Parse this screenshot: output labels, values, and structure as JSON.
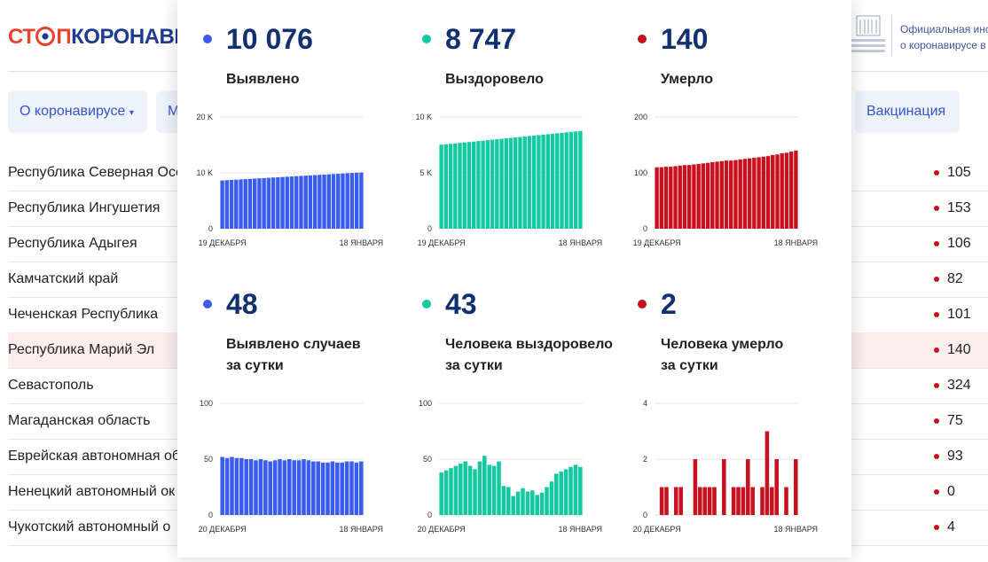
{
  "header": {
    "logo_left": "СТ",
    "logo_mid": "П",
    "logo_right": "КОРОНАВИ",
    "gov_lines": [
      "Официальная инс",
      "о коронавирусе в"
    ]
  },
  "nav": [
    "О коронавирусе",
    "М",
    "Вакцинация"
  ],
  "table": {
    "highlight_row": 5,
    "rows": [
      [
        "Республика Северная Осе",
        105
      ],
      [
        "Республика Ингушетия",
        153
      ],
      [
        "Республика Адыгея",
        106
      ],
      [
        "Камчатский край",
        82
      ],
      [
        "Чеченская Республика",
        101
      ],
      [
        "Республика Марий Эл",
        140
      ],
      [
        "Севастополь",
        324
      ],
      [
        "Магаданская область",
        75
      ],
      [
        "Еврейская автономная об",
        93
      ],
      [
        "Ненецкий автономный ок",
        0
      ],
      [
        "Чукотский автономный о",
        4
      ]
    ]
  },
  "chart_data": [
    {
      "type": "bar",
      "headline": "10 076",
      "title": [
        "Выявлено"
      ],
      "color": "#3a5cf0",
      "grid": true,
      "categories": [
        "19 ДЕКАБРЯ",
        null,
        null,
        null,
        null,
        null,
        null,
        null,
        null,
        null,
        null,
        null,
        null,
        null,
        null,
        null,
        null,
        null,
        null,
        null,
        null,
        null,
        null,
        null,
        null,
        null,
        null,
        null,
        null,
        null,
        "18 ЯНВАРЯ"
      ],
      "values": [
        8636,
        8684,
        8732,
        8780,
        8828,
        8876,
        8924,
        8972,
        9020,
        9068,
        9116,
        9164,
        9212,
        9260,
        9308,
        9356,
        9404,
        9452,
        9500,
        9548,
        9596,
        9644,
        9692,
        9740,
        9788,
        9836,
        9884,
        9932,
        9980,
        10028,
        10076
      ],
      "ylim": [
        0,
        20000
      ],
      "yticks": [
        0,
        {
          "value": 10000,
          "label": "10 K"
        },
        {
          "value": 20000,
          "label": "20 K"
        }
      ]
    },
    {
      "type": "bar",
      "headline": "8 747",
      "title": [
        "Выздоровело"
      ],
      "color": "#14c9a0",
      "grid": true,
      "categories": [
        "19 ДЕКАБРЯ",
        null,
        null,
        null,
        null,
        null,
        null,
        null,
        null,
        null,
        null,
        null,
        null,
        null,
        null,
        null,
        null,
        null,
        null,
        null,
        null,
        null,
        null,
        null,
        null,
        null,
        null,
        null,
        null,
        null,
        "18 ЯНВАРЯ"
      ],
      "values": [
        7517,
        7558,
        7599,
        7640,
        7681,
        7722,
        7763,
        7804,
        7845,
        7886,
        7927,
        7968,
        8009,
        8050,
        8091,
        8132,
        8173,
        8214,
        8255,
        8296,
        8337,
        8378,
        8419,
        8460,
        8501,
        8542,
        8583,
        8624,
        8665,
        8706,
        8747
      ],
      "ylim": [
        0,
        10000
      ],
      "yticks": [
        0,
        {
          "value": 5000,
          "label": "5 K"
        },
        {
          "value": 10000,
          "label": "10 K"
        }
      ]
    },
    {
      "type": "bar",
      "headline": "140",
      "title": [
        "Умерло"
      ],
      "color": "#c8101e",
      "grid": true,
      "categories": [
        "19 ДЕКАБРЯ",
        null,
        null,
        null,
        null,
        null,
        null,
        null,
        null,
        null,
        null,
        null,
        null,
        null,
        null,
        null,
        null,
        null,
        null,
        null,
        null,
        null,
        null,
        null,
        null,
        null,
        null,
        null,
        null,
        null,
        "18 ЯНВАРЯ"
      ],
      "values": [
        110,
        110,
        111,
        111,
        112,
        113,
        114,
        114,
        115,
        116,
        117,
        118,
        119,
        120,
        121,
        122,
        122,
        123,
        124,
        125,
        126,
        127,
        128,
        129,
        130,
        132,
        133,
        135,
        136,
        138,
        140
      ],
      "ylim": [
        0,
        200
      ],
      "yticks": [
        0,
        100,
        200
      ]
    },
    {
      "type": "bar",
      "headline": "48",
      "title": [
        "Выявлено случаев",
        "за сутки"
      ],
      "color": "#3a5cf0",
      "grid": true,
      "categories": [
        "20 ДЕКАБРЯ",
        null,
        null,
        null,
        null,
        null,
        null,
        null,
        null,
        null,
        null,
        null,
        null,
        null,
        null,
        null,
        null,
        null,
        null,
        null,
        null,
        null,
        null,
        null,
        null,
        null,
        null,
        null,
        null,
        "18 ЯНВАРЯ"
      ],
      "values": [
        52,
        51,
        52,
        51,
        51,
        50,
        50,
        49,
        50,
        49,
        48,
        49,
        50,
        49,
        50,
        49,
        49,
        50,
        49,
        48,
        48,
        47,
        47,
        48,
        47,
        47,
        48,
        48,
        47,
        48
      ],
      "ylim": [
        0,
        100
      ],
      "yticks": [
        0,
        50,
        100
      ]
    },
    {
      "type": "bar",
      "headline": "43",
      "title": [
        "Человека выздоровело",
        "за сутки"
      ],
      "color": "#14c9a0",
      "grid": true,
      "categories": [
        "20 ДЕКАБРЯ",
        null,
        null,
        null,
        null,
        null,
        null,
        null,
        null,
        null,
        null,
        null,
        null,
        null,
        null,
        null,
        null,
        null,
        null,
        null,
        null,
        null,
        null,
        null,
        null,
        null,
        null,
        null,
        null,
        "18 ЯНВАРЯ"
      ],
      "values": [
        38,
        40,
        42,
        44,
        46,
        48,
        44,
        41,
        48,
        53,
        45,
        44,
        48,
        26,
        25,
        17,
        21,
        24,
        21,
        22,
        18,
        20,
        25,
        30,
        37,
        39,
        41,
        43,
        45,
        43
      ],
      "ylim": [
        0,
        100
      ],
      "yticks": [
        0,
        50,
        100
      ]
    },
    {
      "type": "bar",
      "headline": "2",
      "title": [
        "Человека умерло",
        "за сутки"
      ],
      "color": "#c8101e",
      "grid": true,
      "categories": [
        "20 ДЕКАБРЯ",
        null,
        null,
        null,
        null,
        null,
        null,
        null,
        null,
        null,
        null,
        null,
        null,
        null,
        null,
        null,
        null,
        null,
        null,
        null,
        null,
        null,
        null,
        null,
        null,
        null,
        null,
        null,
        null,
        "18 ЯНВАРЯ"
      ],
      "values": [
        0,
        1,
        1,
        0,
        1,
        1,
        0,
        0,
        2,
        1,
        1,
        1,
        1,
        0,
        2,
        0,
        1,
        1,
        1,
        2,
        1,
        0,
        1,
        3,
        1,
        2,
        0,
        1,
        0,
        2
      ],
      "ylim": [
        0,
        4
      ],
      "yticks": [
        0,
        2,
        4
      ]
    }
  ]
}
